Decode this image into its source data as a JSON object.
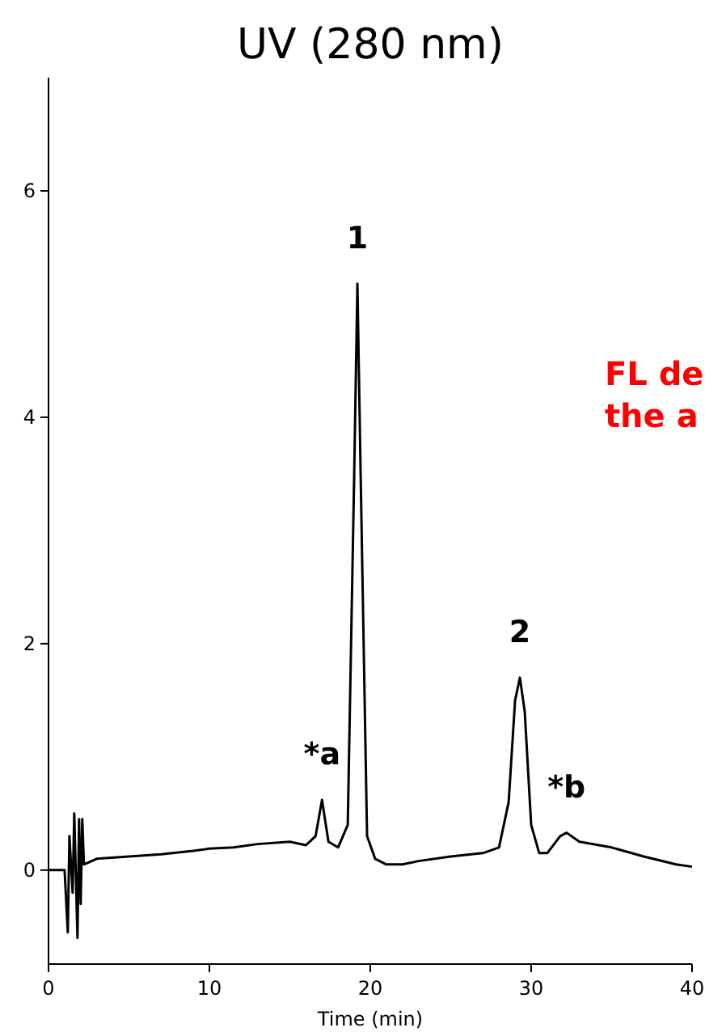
{
  "chart_data": {
    "type": "line",
    "title": "UV (280 nm)",
    "xlabel": "Time (min)",
    "xlim": [
      0,
      40
    ],
    "ylim": [
      -0.83,
      7
    ],
    "xticks": [
      0,
      10,
      20,
      30,
      40
    ],
    "yticks": [
      0,
      2,
      4,
      6
    ],
    "grid": false,
    "marker": "none",
    "line_style": "solid",
    "series": [
      {
        "color": "#000000",
        "x": [
          0,
          1.0,
          1.2,
          1.3,
          1.5,
          1.6,
          1.8,
          1.9,
          2.0,
          2.1,
          2.2,
          3,
          5,
          7,
          9,
          10,
          11.5,
          13,
          15,
          16,
          16.6,
          17.0,
          17.4,
          18,
          18.6,
          19.0,
          19.2,
          19.4,
          19.8,
          20.3,
          21,
          22,
          23,
          25,
          27,
          28,
          28.6,
          29.0,
          29.3,
          29.6,
          30,
          30.5,
          31,
          31.8,
          32.2,
          33,
          35,
          37,
          39,
          40
        ],
        "values": [
          0,
          0,
          -0.55,
          0.3,
          -0.2,
          0.5,
          -0.6,
          0.45,
          -0.3,
          0.45,
          0.05,
          0.1,
          0.12,
          0.14,
          0.17,
          0.19,
          0.2,
          0.23,
          0.25,
          0.22,
          0.3,
          0.62,
          0.25,
          0.2,
          0.4,
          3.5,
          5.18,
          3.5,
          0.3,
          0.1,
          0.05,
          0.05,
          0.08,
          0.12,
          0.15,
          0.2,
          0.6,
          1.5,
          1.7,
          1.4,
          0.4,
          0.15,
          0.15,
          0.3,
          0.33,
          0.25,
          0.2,
          0.12,
          0.05,
          0.03
        ]
      }
    ],
    "annotations": [
      {
        "text": "1",
        "x": 19.2,
        "y": 5.18
      },
      {
        "text": "2",
        "x": 29.3,
        "y": 1.7
      },
      {
        "text": "*a",
        "x": 17.0,
        "y": 0.62
      },
      {
        "text": "*b",
        "x": 32.2,
        "y": 0.33
      },
      "FL de",
      "the a"
    ]
  }
}
